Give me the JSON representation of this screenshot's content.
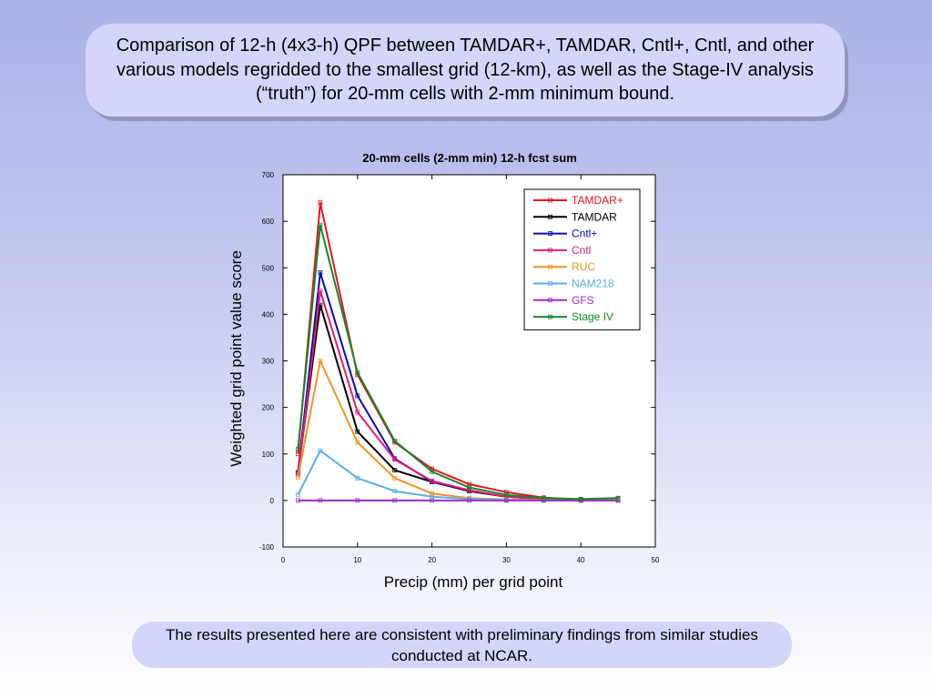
{
  "slide": {
    "title": "Comparison of 12-h (4x3-h) QPF between TAMDAR+, TAMDAR, Cntl+, Cntl, and other various models regridded to the smallest grid (12-km), as well as the Stage-IV analysis (“truth”) for 20-mm cells with 2-mm minimum bound.",
    "note": "The results presented here are consistent with preliminary findings from similar studies conducted at NCAR."
  },
  "chart_data": {
    "type": "line",
    "title": "20-mm cells (2-mm min) 12-h fcst sum",
    "xlabel": "Precip (mm) per grid point",
    "ylabel": "Weighted grid point value score",
    "xlim": [
      0,
      50
    ],
    "ylim": [
      -100,
      700
    ],
    "xticks": [
      0,
      10,
      20,
      30,
      40,
      50
    ],
    "yticks": [
      -100,
      0,
      100,
      200,
      300,
      400,
      500,
      600,
      700
    ],
    "legend_position": "top-right",
    "x": [
      2,
      5,
      10,
      15,
      20,
      25,
      30,
      35,
      40,
      45
    ],
    "series": [
      {
        "name": "TAMDAR+",
        "color": "#e8141c",
        "values": [
          100,
          640,
          270,
          125,
          68,
          35,
          18,
          6,
          2,
          5
        ]
      },
      {
        "name": "TAMDAR",
        "color": "#000000",
        "values": [
          60,
          420,
          148,
          65,
          40,
          20,
          8,
          3,
          1,
          3
        ]
      },
      {
        "name": "Cntl+",
        "color": "#0a0ab4",
        "values": [
          60,
          490,
          225,
          90,
          40,
          22,
          8,
          3,
          1,
          3
        ]
      },
      {
        "name": "Cntl",
        "color": "#e81a6e",
        "values": [
          55,
          450,
          190,
          88,
          42,
          22,
          8,
          3,
          1,
          3
        ]
      },
      {
        "name": "RUC",
        "color": "#f39322",
        "values": [
          50,
          300,
          125,
          48,
          15,
          5,
          2,
          1,
          0,
          1
        ]
      },
      {
        "name": "NAM218",
        "color": "#5aaee8",
        "values": [
          12,
          107,
          48,
          20,
          8,
          3,
          1,
          0,
          0,
          0
        ]
      },
      {
        "name": "GFS",
        "color": "#9b2ec7",
        "values": [
          0,
          0,
          0,
          0,
          0,
          0,
          0,
          0,
          0,
          0
        ]
      },
      {
        "name": "Stage IV",
        "color": "#118a2a",
        "values": [
          110,
          592,
          275,
          128,
          62,
          28,
          12,
          5,
          3,
          5
        ]
      }
    ]
  }
}
